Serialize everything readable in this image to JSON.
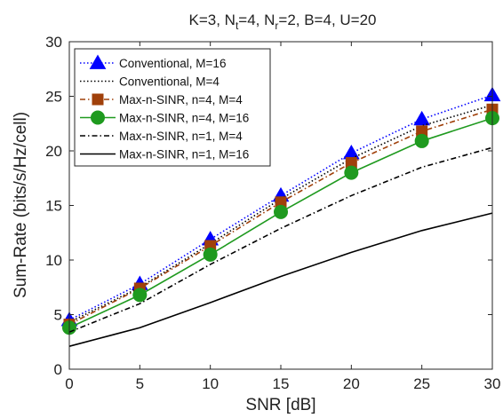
{
  "chart_data": {
    "type": "line",
    "title": {
      "prefix": "K=3, N",
      "nt_sub": "t",
      "mid1": "=4, N",
      "nr_sub": "r",
      "mid2": "=2, B=4, U=20"
    },
    "xlabel": "SNR [dB]",
    "ylabel": "Sum-Rate (bits/s/Hz/cell)",
    "xlim": [
      0,
      30
    ],
    "ylim": [
      0,
      30
    ],
    "xticks": [
      0,
      5,
      10,
      15,
      20,
      25,
      30
    ],
    "yticks": [
      0,
      5,
      10,
      15,
      20,
      25,
      30
    ],
    "grid": false,
    "legend_position": "top-left",
    "x": [
      0,
      5,
      10,
      15,
      20,
      25,
      30
    ],
    "series": [
      {
        "name": "Conventional, M=16",
        "values": [
          4.5,
          7.8,
          11.9,
          15.9,
          19.8,
          22.9,
          25.1
        ],
        "color": "#0000ff",
        "line": "dotted",
        "marker": "triangle"
      },
      {
        "name": "Conventional, M=4",
        "values": [
          4.3,
          7.5,
          11.5,
          15.6,
          19.3,
          22.3,
          24.2
        ],
        "color": "#000000",
        "line": "dotted",
        "marker": "none"
      },
      {
        "name": "Max-n-SINR, n=4, M=4",
        "values": [
          4.1,
          7.4,
          11.3,
          15.3,
          18.9,
          21.8,
          23.8
        ],
        "color": "#a0400a",
        "line": "dashdot",
        "marker": "square"
      },
      {
        "name": "Max-n-SINR, n=4, M=16",
        "values": [
          3.8,
          6.8,
          10.5,
          14.4,
          18.0,
          20.9,
          23.0
        ],
        "color": "#1f9a1f",
        "line": "solid",
        "marker": "circle"
      },
      {
        "name": "Max-n-SINR, n=1, M=4",
        "values": [
          3.4,
          6.0,
          9.6,
          12.9,
          15.9,
          18.5,
          20.3
        ],
        "color": "#000000",
        "line": "dashdot",
        "marker": "none"
      },
      {
        "name": "Max-n-SINR, n=1, M=16",
        "values": [
          2.1,
          3.8,
          6.1,
          8.5,
          10.7,
          12.7,
          14.3
        ],
        "color": "#000000",
        "line": "solid",
        "marker": "none"
      }
    ]
  }
}
